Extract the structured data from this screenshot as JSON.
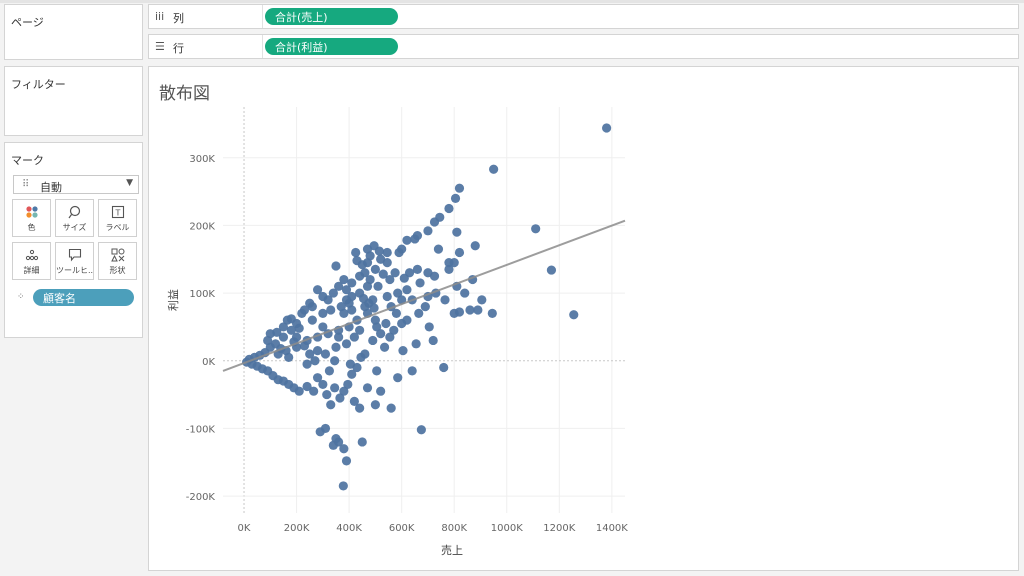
{
  "sidebar": {
    "pages_title": "ページ",
    "filters_title": "フィルター",
    "marks": {
      "title": "マーク",
      "type_label": "自動",
      "cards": [
        {
          "label": "色",
          "icon": "color-dots-icon"
        },
        {
          "label": "サイズ",
          "icon": "size-icon"
        },
        {
          "label": "ラベル",
          "icon": "label-icon"
        },
        {
          "label": "詳細",
          "icon": "detail-icon"
        },
        {
          "label": "ツールヒ...",
          "icon": "tooltip-icon"
        },
        {
          "label": "形状",
          "icon": "shape-icon"
        }
      ],
      "detail_pill": "顧客名"
    }
  },
  "shelves": {
    "columns": {
      "label": "列",
      "icon": "columns-icon",
      "pill": "合計(売上)"
    },
    "rows": {
      "label": "行",
      "icon": "rows-icon",
      "pill": "合計(利益)"
    }
  },
  "sheet": {
    "title": "散布図"
  },
  "colors": {
    "mark": "#4f73a0",
    "trend": "#8c8c8c",
    "columns_pill": "#16a97f",
    "detail_pill": "#4c9fbb"
  },
  "chart_data": {
    "type": "scatter",
    "title": "散布図",
    "xlabel": "売上",
    "ylabel": "利益",
    "x_ticks": [
      "0K",
      "200K",
      "400K",
      "600K",
      "800K",
      "1000K",
      "1200K",
      "1400K"
    ],
    "y_ticks": [
      "-200K",
      "-100K",
      "0K",
      "100K",
      "200K",
      "300K"
    ],
    "xlim": [
      -80000,
      1450000
    ],
    "ylim": [
      -225000,
      375000
    ],
    "grid": true,
    "trend_line": [
      [
        -80000,
        -15000
      ],
      [
        1450000,
        207000
      ]
    ],
    "points": [
      [
        1380000,
        344000
      ],
      [
        950000,
        283000
      ],
      [
        1110000,
        195000
      ],
      [
        1170000,
        134000
      ],
      [
        1255000,
        68000
      ],
      [
        820000,
        255000
      ],
      [
        805000,
        240000
      ],
      [
        780000,
        225000
      ],
      [
        745000,
        212000
      ],
      [
        725000,
        205000
      ],
      [
        700000,
        192000
      ],
      [
        660000,
        185000
      ],
      [
        650000,
        180000
      ],
      [
        620000,
        178000
      ],
      [
        600000,
        165000
      ],
      [
        590000,
        160000
      ],
      [
        545000,
        145000
      ],
      [
        515000,
        162000
      ],
      [
        495000,
        170000
      ],
      [
        470000,
        165000
      ],
      [
        470000,
        145000
      ],
      [
        450000,
        142000
      ],
      [
        425000,
        160000
      ],
      [
        880000,
        170000
      ],
      [
        820000,
        160000
      ],
      [
        800000,
        145000
      ],
      [
        780000,
        135000
      ],
      [
        725000,
        125000
      ],
      [
        700000,
        130000
      ],
      [
        660000,
        135000
      ],
      [
        630000,
        130000
      ],
      [
        610000,
        122000
      ],
      [
        575000,
        130000
      ],
      [
        555000,
        120000
      ],
      [
        530000,
        128000
      ],
      [
        510000,
        110000
      ],
      [
        480000,
        120000
      ],
      [
        870000,
        120000
      ],
      [
        905000,
        90000
      ],
      [
        890000,
        75000
      ],
      [
        945000,
        70000
      ],
      [
        860000,
        75000
      ],
      [
        840000,
        100000
      ],
      [
        810000,
        110000
      ],
      [
        765000,
        90000
      ],
      [
        730000,
        100000
      ],
      [
        700000,
        95000
      ],
      [
        690000,
        80000
      ],
      [
        665000,
        70000
      ],
      [
        640000,
        90000
      ],
      [
        620000,
        60000
      ],
      [
        600000,
        55000
      ],
      [
        580000,
        70000
      ],
      [
        570000,
        45000
      ],
      [
        555000,
        35000
      ],
      [
        540000,
        55000
      ],
      [
        520000,
        40000
      ],
      [
        500000,
        60000
      ],
      [
        490000,
        30000
      ],
      [
        470000,
        70000
      ],
      [
        460000,
        10000
      ],
      [
        445000,
        5000
      ],
      [
        430000,
        -10000
      ],
      [
        410000,
        -20000
      ],
      [
        395000,
        -35000
      ],
      [
        380000,
        -45000
      ],
      [
        365000,
        -55000
      ],
      [
        345000,
        -40000
      ],
      [
        330000,
        -65000
      ],
      [
        315000,
        -50000
      ],
      [
        300000,
        -35000
      ],
      [
        280000,
        -25000
      ],
      [
        265000,
        -45000
      ],
      [
        420000,
        -60000
      ],
      [
        470000,
        -40000
      ],
      [
        520000,
        -45000
      ],
      [
        560000,
        -70000
      ],
      [
        500000,
        -65000
      ],
      [
        440000,
        -70000
      ],
      [
        310000,
        -100000
      ],
      [
        290000,
        -105000
      ],
      [
        350000,
        -115000
      ],
      [
        360000,
        -120000
      ],
      [
        340000,
        -125000
      ],
      [
        380000,
        -130000
      ],
      [
        450000,
        -120000
      ],
      [
        675000,
        -102000
      ],
      [
        390000,
        -148000
      ],
      [
        378000,
        -185000
      ],
      [
        800000,
        70000
      ],
      [
        820000,
        72000
      ],
      [
        670000,
        115000
      ],
      [
        740000,
        165000
      ],
      [
        780000,
        145000
      ],
      [
        810000,
        190000
      ],
      [
        350000,
        140000
      ],
      [
        430000,
        148000
      ],
      [
        380000,
        120000
      ],
      [
        440000,
        125000
      ],
      [
        470000,
        110000
      ],
      [
        300000,
        50000
      ],
      [
        320000,
        90000
      ],
      [
        300000,
        95000
      ],
      [
        280000,
        105000
      ],
      [
        250000,
        85000
      ],
      [
        230000,
        75000
      ],
      [
        200000,
        55000
      ],
      [
        180000,
        45000
      ],
      [
        150000,
        35000
      ],
      [
        120000,
        25000
      ],
      [
        100000,
        20000
      ],
      [
        80000,
        12000
      ],
      [
        60000,
        8000
      ],
      [
        40000,
        5000
      ],
      [
        20000,
        2000
      ],
      [
        10000,
        -2000
      ],
      [
        30000,
        -5000
      ],
      [
        50000,
        -8000
      ],
      [
        70000,
        -12000
      ],
      [
        90000,
        -15000
      ],
      [
        110000,
        -22000
      ],
      [
        130000,
        -28000
      ],
      [
        150000,
        -30000
      ],
      [
        170000,
        -35000
      ],
      [
        190000,
        -40000
      ],
      [
        210000,
        -45000
      ],
      [
        240000,
        -38000
      ],
      [
        150000,
        50000
      ],
      [
        180000,
        62000
      ],
      [
        220000,
        70000
      ],
      [
        260000,
        80000
      ],
      [
        340000,
        100000
      ],
      [
        360000,
        110000
      ],
      [
        390000,
        105000
      ],
      [
        410000,
        115000
      ],
      [
        130000,
        10000
      ],
      [
        160000,
        15000
      ],
      [
        200000,
        20000
      ],
      [
        240000,
        30000
      ],
      [
        280000,
        35000
      ],
      [
        320000,
        40000
      ],
      [
        360000,
        45000
      ],
      [
        400000,
        50000
      ],
      [
        430000,
        60000
      ],
      [
        460000,
        80000
      ],
      [
        490000,
        90000
      ],
      [
        240000,
        -5000
      ],
      [
        270000,
        0
      ],
      [
        310000,
        10000
      ],
      [
        350000,
        20000
      ],
      [
        390000,
        25000
      ],
      [
        100000,
        40000
      ],
      [
        90000,
        30000
      ],
      [
        200000,
        35000
      ],
      [
        210000,
        48000
      ],
      [
        260000,
        60000
      ],
      [
        300000,
        70000
      ],
      [
        330000,
        75000
      ],
      [
        370000,
        80000
      ],
      [
        400000,
        85000
      ],
      [
        410000,
        95000
      ],
      [
        440000,
        100000
      ],
      [
        455000,
        92000
      ],
      [
        475000,
        85000
      ],
      [
        495000,
        78000
      ],
      [
        505000,
        50000
      ],
      [
        535000,
        20000
      ],
      [
        410000,
        75000
      ],
      [
        380000,
        70000
      ],
      [
        280000,
        15000
      ],
      [
        420000,
        35000
      ],
      [
        440000,
        45000
      ],
      [
        360000,
        35000
      ],
      [
        250000,
        10000
      ],
      [
        170000,
        5000
      ],
      [
        140000,
        18000
      ],
      [
        190000,
        28000
      ],
      [
        230000,
        22000
      ],
      [
        125000,
        42000
      ],
      [
        165000,
        60000
      ],
      [
        345000,
        0
      ],
      [
        325000,
        -15000
      ],
      [
        405000,
        -5000
      ],
      [
        505000,
        -15000
      ],
      [
        585000,
        -25000
      ],
      [
        640000,
        -15000
      ],
      [
        605000,
        15000
      ],
      [
        655000,
        25000
      ],
      [
        720000,
        30000
      ],
      [
        760000,
        -10000
      ],
      [
        705000,
        50000
      ],
      [
        545000,
        95000
      ],
      [
        585000,
        100000
      ],
      [
        620000,
        105000
      ],
      [
        560000,
        80000
      ],
      [
        600000,
        90000
      ],
      [
        390000,
        90000
      ],
      [
        460000,
        130000
      ],
      [
        520000,
        150000
      ],
      [
        480000,
        155000
      ],
      [
        545000,
        160000
      ],
      [
        500000,
        135000
      ]
    ]
  }
}
